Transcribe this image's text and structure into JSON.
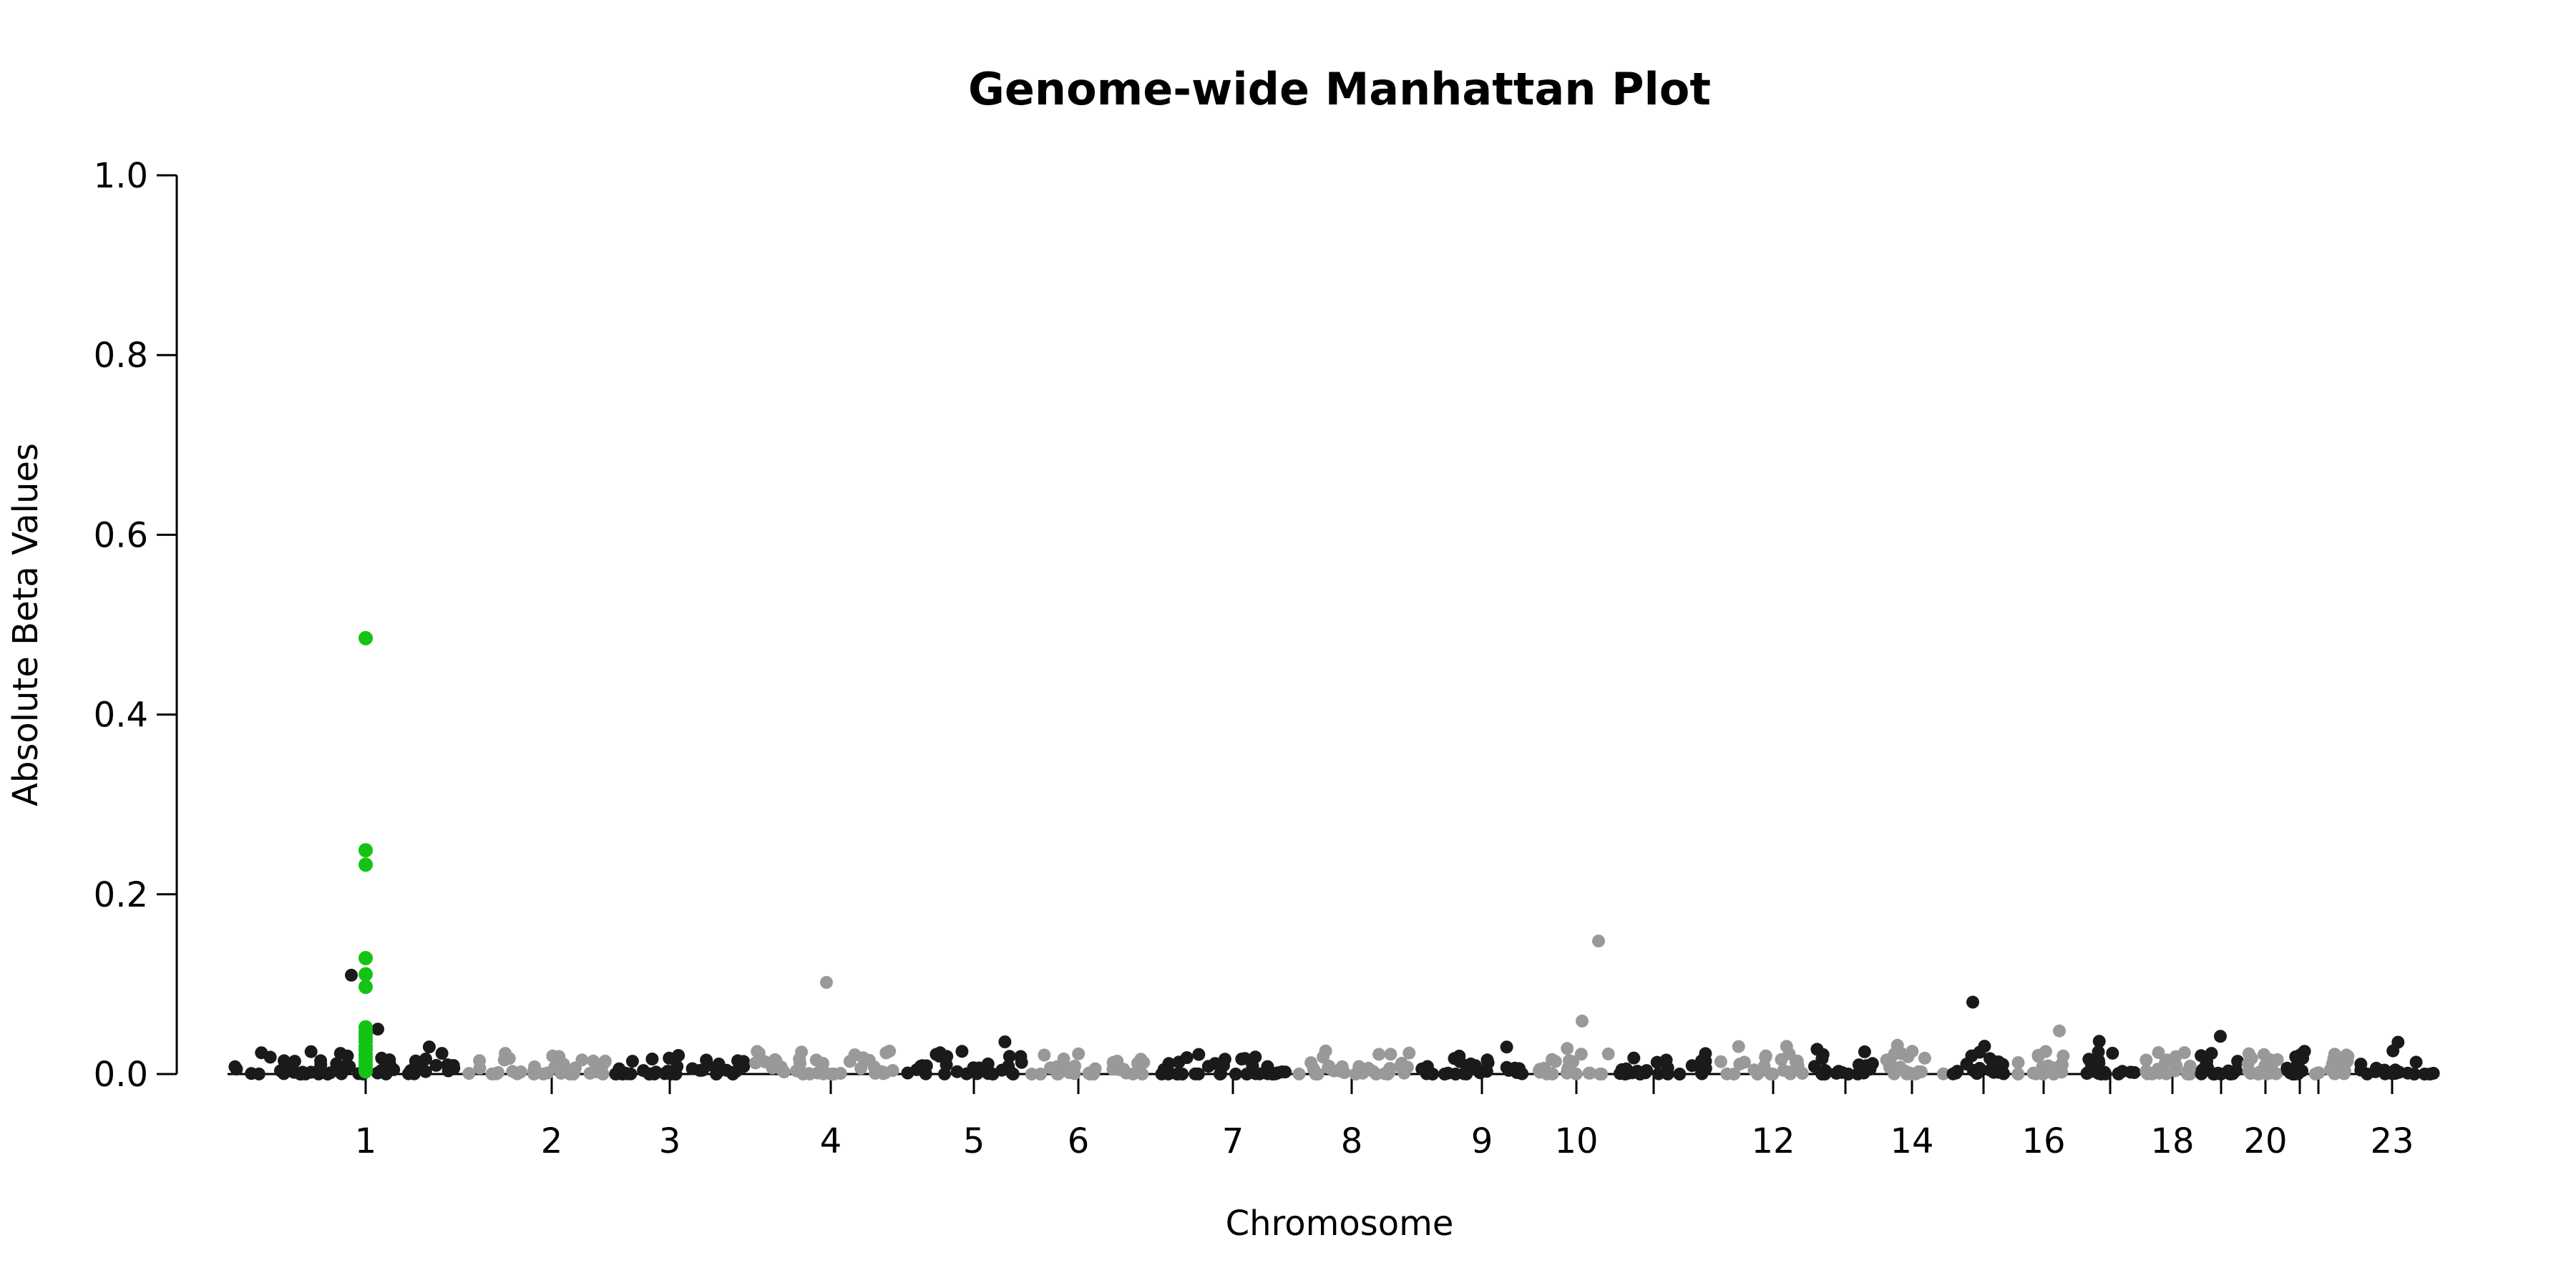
{
  "chart_data": {
    "type": "scatter",
    "title": "Genome-wide Manhattan Plot",
    "xlabel": "Chromosome",
    "ylabel": "Absolute Beta Values",
    "ylim": [
      0,
      1.0
    ],
    "y_ticks": [
      "0.0",
      "0.2",
      "0.4",
      "0.6",
      "0.8",
      "1.0"
    ],
    "x_tick_labels": [
      "1",
      "2",
      "3",
      "4",
      "5",
      "6",
      "7",
      "8",
      "9",
      "10",
      "",
      "12",
      "",
      "14",
      "",
      "16",
      "",
      "18",
      "",
      "20",
      "",
      "",
      "23"
    ],
    "grid": false,
    "legend": "none",
    "colors": {
      "odd_chromosome": "#1a1a1a",
      "even_chromosome": "#999999",
      "highlight": "#14c414"
    },
    "highlight_points": {
      "chromosome": 1,
      "values": [
        0.485,
        0.249,
        0.233,
        0.129,
        0.111,
        0.097,
        0.052,
        0.047,
        0.044,
        0.04,
        0.036,
        0.031,
        0.027,
        0.022,
        0.018,
        0.014,
        0.01,
        0.006,
        0.003
      ]
    },
    "notable_points": [
      {
        "chromosome": 1,
        "value": 0.11
      },
      {
        "chromosome": 1,
        "value": 0.05
      },
      {
        "chromosome": 4,
        "value": 0.102
      },
      {
        "chromosome": 10,
        "value": 0.148
      },
      {
        "chromosome": 10,
        "value": 0.059
      },
      {
        "chromosome": 15,
        "value": 0.08
      },
      {
        "chromosome": 16,
        "value": 0.048
      },
      {
        "chromosome": 19,
        "value": 0.042
      }
    ]
  }
}
